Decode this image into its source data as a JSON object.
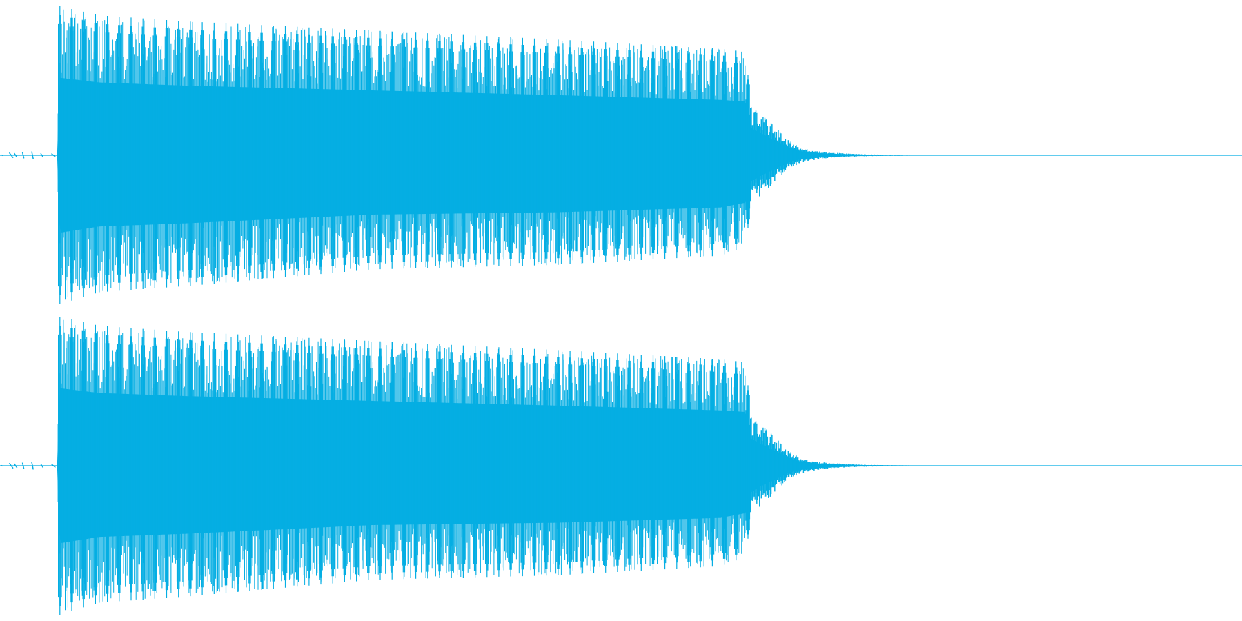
{
  "chart_data": {
    "type": "waveform",
    "title": "",
    "xlabel": "",
    "ylabel": "",
    "grid": false,
    "legend": "none",
    "color": "#05aee3",
    "ylim": [
      -1,
      1
    ],
    "channels": [
      {
        "id": "channel-1",
        "pre_noise": {
          "x_end": 0.046,
          "amplitude": 0.008
        },
        "envelope": {
          "x": [
            0.046,
            0.048,
            0.08,
            0.15,
            0.3,
            0.45,
            0.58,
            0.6,
            0.605,
            0.615,
            0.625,
            0.635,
            0.645,
            0.66,
            0.68,
            0.7,
            0.76
          ],
          "top": [
            0.0,
            0.98,
            0.92,
            0.88,
            0.82,
            0.76,
            0.7,
            0.68,
            0.34,
            0.26,
            0.18,
            0.1,
            0.05,
            0.025,
            0.012,
            0.006,
            0.0
          ],
          "bottom": [
            0.0,
            0.98,
            0.9,
            0.86,
            0.75,
            0.72,
            0.66,
            0.6,
            0.33,
            0.24,
            0.17,
            0.09,
            0.05,
            0.025,
            0.012,
            0.006,
            0.0
          ]
        },
        "pulse_count": 58
      },
      {
        "id": "channel-2",
        "pre_noise": {
          "x_end": 0.046,
          "amplitude": 0.008
        },
        "envelope": {
          "x": [
            0.046,
            0.048,
            0.08,
            0.15,
            0.3,
            0.45,
            0.58,
            0.6,
            0.605,
            0.615,
            0.625,
            0.635,
            0.645,
            0.66,
            0.68,
            0.7,
            0.76
          ],
          "top": [
            0.0,
            0.98,
            0.92,
            0.88,
            0.82,
            0.76,
            0.7,
            0.68,
            0.34,
            0.26,
            0.18,
            0.1,
            0.05,
            0.025,
            0.012,
            0.006,
            0.0
          ],
          "bottom": [
            0.0,
            0.98,
            0.9,
            0.86,
            0.75,
            0.72,
            0.66,
            0.6,
            0.33,
            0.24,
            0.17,
            0.09,
            0.05,
            0.025,
            0.012,
            0.006,
            0.0
          ]
        },
        "pulse_count": 58
      }
    ]
  }
}
